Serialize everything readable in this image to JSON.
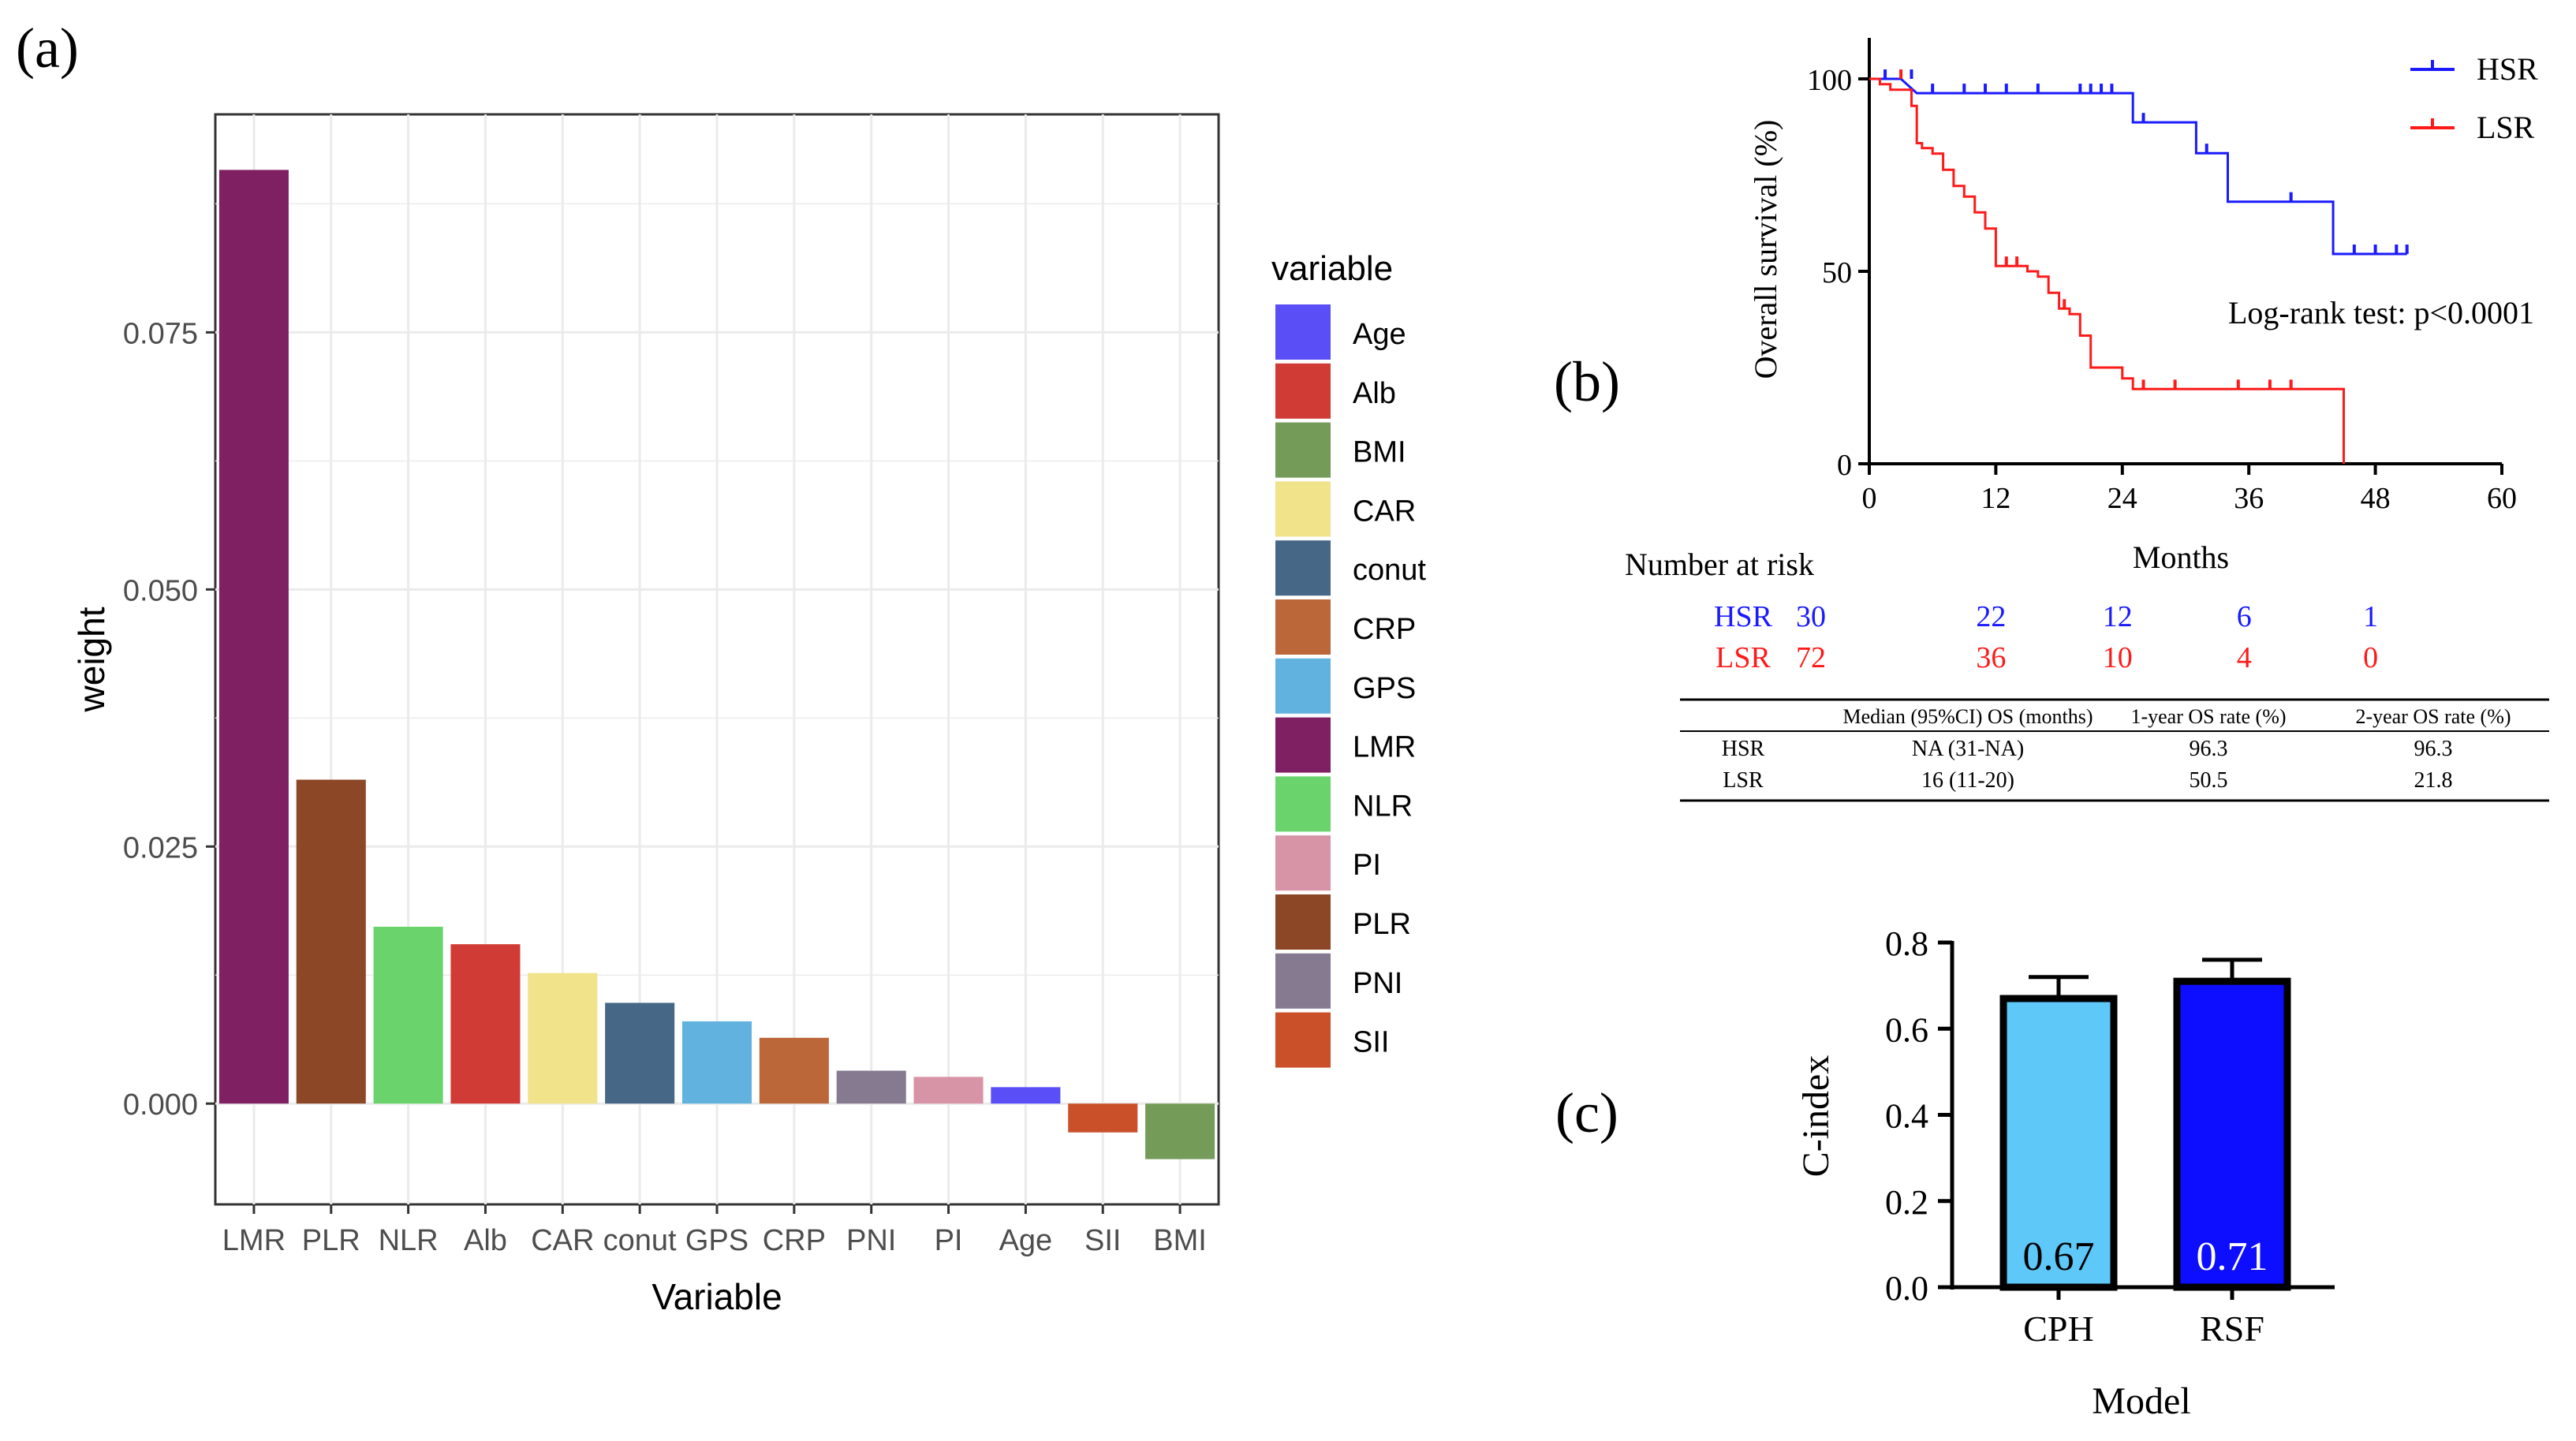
{
  "chart_data": [
    {
      "panel": "(a)",
      "type": "bar",
      "xlabel": "Variable",
      "ylabel": "weight",
      "ylim": [
        -0.0098,
        0.0962
      ],
      "yticks": [
        0.0,
        0.025,
        0.05,
        0.075
      ],
      "ytick_labels": [
        "0.000",
        "0.025",
        "0.050",
        "0.075"
      ],
      "grid": true,
      "legend_title": "variable",
      "legend_position": "right",
      "categories": [
        "LMR",
        "PLR",
        "NLR",
        "Alb",
        "CAR",
        "conut",
        "GPS",
        "CRP",
        "PNI",
        "PI",
        "Age",
        "SII",
        "BMI"
      ],
      "values": [
        0.0908,
        0.0315,
        0.0172,
        0.0155,
        0.0127,
        0.0098,
        0.008,
        0.0064,
        0.0032,
        0.0026,
        0.0016,
        -0.0028,
        -0.0054
      ],
      "colors": [
        "#7e2062",
        "#8c4726",
        "#6ad36c",
        "#d13b35",
        "#f0e389",
        "#466886",
        "#62b2e0",
        "#bb673a",
        "#857a90",
        "#d794a6",
        "#5a4ff7",
        "#c95029",
        "#759b59"
      ],
      "legend": [
        {
          "label": "Age",
          "color": "#5a4ff7"
        },
        {
          "label": "Alb",
          "color": "#d13b35"
        },
        {
          "label": "BMI",
          "color": "#759b59"
        },
        {
          "label": "CAR",
          "color": "#f0e389"
        },
        {
          "label": "conut",
          "color": "#466886"
        },
        {
          "label": "CRP",
          "color": "#bb673a"
        },
        {
          "label": "GPS",
          "color": "#62b2e0"
        },
        {
          "label": "LMR",
          "color": "#7e2062"
        },
        {
          "label": "NLR",
          "color": "#6ad36c"
        },
        {
          "label": "PI",
          "color": "#d794a6"
        },
        {
          "label": "PLR",
          "color": "#8c4726"
        },
        {
          "label": "PNI",
          "color": "#857a90"
        },
        {
          "label": "SII",
          "color": "#c95029"
        }
      ]
    },
    {
      "panel": "(b)",
      "type": "line",
      "subtype": "kaplan-meier",
      "xlabel": "Months",
      "ylabel": "Overall survival (%)",
      "xlim": [
        0,
        60
      ],
      "ylim": [
        0,
        100
      ],
      "xticks": [
        0,
        12,
        24,
        36,
        48,
        60
      ],
      "yticks": [
        0,
        50,
        100
      ],
      "annotation": "Log-rank test: p<0.0001",
      "legend_position": "top-right",
      "series": [
        {
          "name": "HSR",
          "color": "#1a1aff",
          "steps": [
            [
              0,
              100
            ],
            [
              3,
              100
            ],
            [
              4.5,
              96.3
            ],
            [
              25,
              96.3
            ],
            [
              25,
              88.7
            ],
            [
              31,
              88.7
            ],
            [
              31,
              80.7
            ],
            [
              34,
              80.7
            ],
            [
              34,
              68.1
            ],
            [
              44,
              68.1
            ],
            [
              44,
              54.5
            ],
            [
              51,
              54.5
            ]
          ],
          "censored": [
            [
              1.5,
              100
            ],
            [
              4,
              100
            ],
            [
              6,
              96.3
            ],
            [
              9,
              96.3
            ],
            [
              11,
              96.3
            ],
            [
              13,
              96.3
            ],
            [
              16,
              96.3
            ],
            [
              20,
              96.3
            ],
            [
              21,
              96.3
            ],
            [
              22,
              96.3
            ],
            [
              23,
              96.3
            ],
            [
              26,
              88.7
            ],
            [
              32,
              80.7
            ],
            [
              40,
              68.1
            ],
            [
              46,
              54.5
            ],
            [
              48,
              54.5
            ],
            [
              50,
              54.5
            ],
            [
              51,
              54.5
            ]
          ]
        },
        {
          "name": "LSR",
          "color": "#ff1a1a",
          "steps": [
            [
              0,
              100
            ],
            [
              1,
              100
            ],
            [
              1,
              98.6
            ],
            [
              2,
              98.6
            ],
            [
              2,
              97.2
            ],
            [
              4,
              97.2
            ],
            [
              4,
              93
            ],
            [
              4.5,
              93
            ],
            [
              4.5,
              83.3
            ],
            [
              5,
              83.3
            ],
            [
              5,
              82
            ],
            [
              6,
              82
            ],
            [
              6,
              80.6
            ],
            [
              7,
              80.6
            ],
            [
              7,
              76.4
            ],
            [
              8,
              76.4
            ],
            [
              8,
              72.2
            ],
            [
              9,
              72.2
            ],
            [
              9,
              69.4
            ],
            [
              10,
              69.4
            ],
            [
              10,
              65.3
            ],
            [
              11,
              65.3
            ],
            [
              11,
              61.1
            ],
            [
              12,
              61.1
            ],
            [
              12,
              51.4
            ],
            [
              15,
              51.4
            ],
            [
              15,
              50
            ],
            [
              16,
              50
            ],
            [
              16,
              48.6
            ],
            [
              17,
              48.6
            ],
            [
              17,
              44.4
            ],
            [
              18,
              44.4
            ],
            [
              18,
              40.3
            ],
            [
              19,
              40.3
            ],
            [
              19,
              38.9
            ],
            [
              20,
              38.9
            ],
            [
              20,
              33.3
            ],
            [
              21,
              33.3
            ],
            [
              21,
              25
            ],
            [
              24,
              25
            ],
            [
              24,
              22.2
            ],
            [
              25,
              22.2
            ],
            [
              25,
              19.4
            ],
            [
              45,
              19.4
            ],
            [
              45,
              0
            ]
          ],
          "censored": [
            [
              3,
              100
            ],
            [
              13,
              51.4
            ],
            [
              14,
              51.4
            ],
            [
              18.5,
              40.3
            ],
            [
              26,
              19.4
            ],
            [
              29,
              19.4
            ],
            [
              35,
              19.4
            ],
            [
              38,
              19.4
            ],
            [
              40,
              19.4
            ]
          ]
        }
      ],
      "risk_table": {
        "title": "Number at risk",
        "rows": [
          {
            "name": "HSR",
            "color": "#1a1aff",
            "values": [
              30,
              22,
              12,
              6,
              1
            ]
          },
          {
            "name": "LSR",
            "color": "#ff1a1a",
            "values": [
              72,
              36,
              10,
              4,
              0
            ]
          }
        ]
      },
      "summary_table": {
        "headers": [
          "",
          "Median (95%CI) OS (months)",
          "1-year OS rate (%)",
          "2-year OS rate (%)"
        ],
        "rows": [
          [
            "HSR",
            "NA (31-NA)",
            "96.3",
            "96.3"
          ],
          [
            "LSR",
            "16 (11-20)",
            "50.5",
            "21.8"
          ]
        ]
      }
    },
    {
      "panel": "(c)",
      "type": "bar",
      "xlabel": "Model",
      "ylabel": "C-index",
      "ylim": [
        0,
        0.8
      ],
      "yticks": [
        0.0,
        0.2,
        0.4,
        0.6,
        0.8
      ],
      "ytick_labels": [
        "0.0",
        "0.2",
        "0.4",
        "0.6",
        "0.8"
      ],
      "categories": [
        "CPH",
        "RSF"
      ],
      "values": [
        0.67,
        0.71
      ],
      "errors": [
        0.05,
        0.05
      ],
      "data_labels": [
        "0.67",
        "0.71"
      ],
      "colors": [
        "#5ec8f8",
        "#0d0dff"
      ]
    }
  ]
}
